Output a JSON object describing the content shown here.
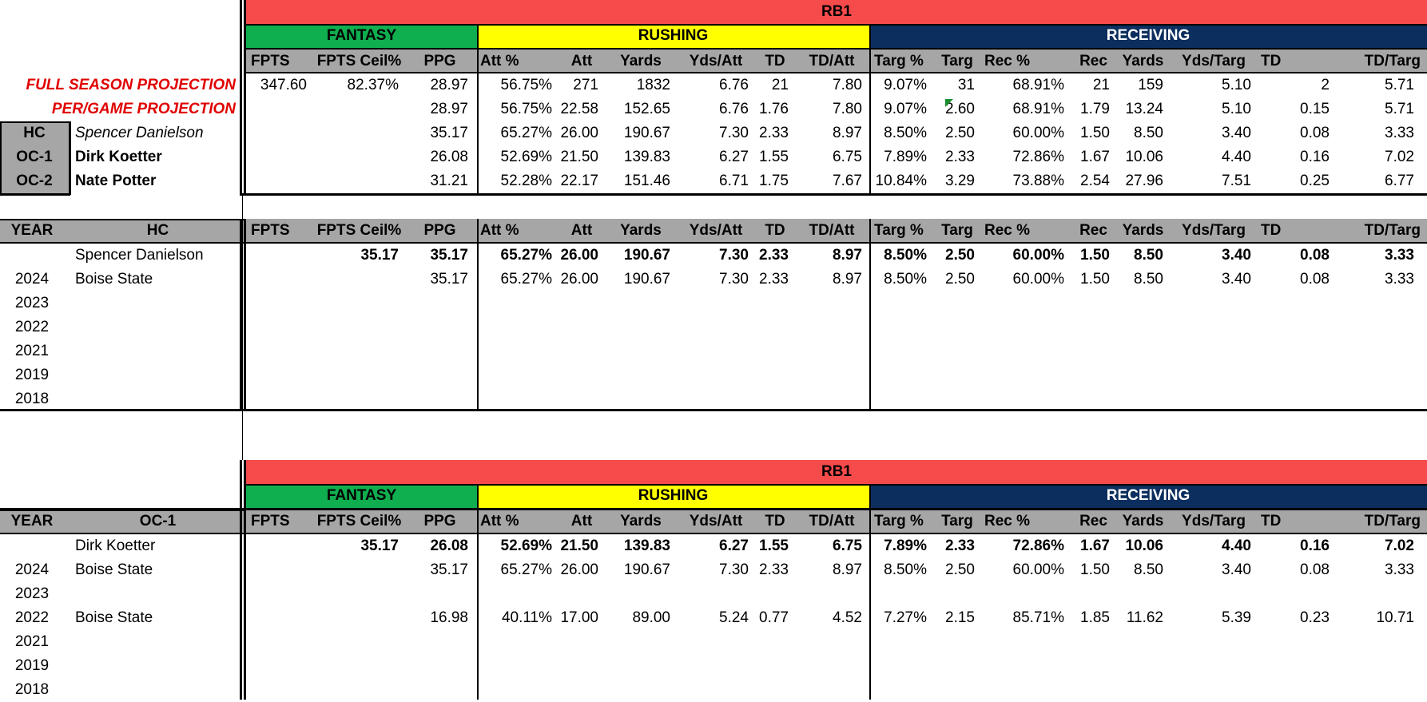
{
  "section_labels": {
    "position": "RB1",
    "fantasy": "FANTASY",
    "rushing": "RUSHING",
    "receiving": "RECEIVING"
  },
  "columns": [
    "FPTS",
    "FPTS Ceil%",
    "PPG",
    "Att %",
    "Att",
    "Yards",
    "Yds/Att",
    "TD",
    "TD/Att",
    "Targ %",
    "Targ",
    "Rec %",
    "Rec",
    "Yards",
    "Yds/Targ",
    "TD",
    "TD/Targ"
  ],
  "top": {
    "full_season_label": "FULL SEASON PROJECTION",
    "per_game_label": "PER/GAME PROJECTION",
    "full_season": [
      "347.60",
      "82.37%",
      "28.97",
      "56.75%",
      "271",
      "1832",
      "6.76",
      "21",
      "7.80",
      "9.07%",
      "31",
      "68.91%",
      "21",
      "159",
      "5.10",
      "2",
      "5.71"
    ],
    "per_game": [
      "",
      "",
      "28.97",
      "56.75%",
      "22.58",
      "152.65",
      "6.76",
      "1.76",
      "7.80",
      "9.07%",
      "2.60",
      "68.91%",
      "1.79",
      "13.24",
      "5.10",
      "0.15",
      "5.71"
    ],
    "coaches": [
      {
        "role": "HC",
        "name": "Spencer Danielson",
        "values": [
          "",
          "",
          "35.17",
          "65.27%",
          "26.00",
          "190.67",
          "7.30",
          "2.33",
          "8.97",
          "8.50%",
          "2.50",
          "60.00%",
          "1.50",
          "8.50",
          "3.40",
          "0.08",
          "3.33"
        ]
      },
      {
        "role": "OC-1",
        "name": "Dirk Koetter",
        "values": [
          "",
          "",
          "26.08",
          "52.69%",
          "21.50",
          "139.83",
          "6.27",
          "1.55",
          "6.75",
          "7.89%",
          "2.33",
          "72.86%",
          "1.67",
          "10.06",
          "4.40",
          "0.16",
          "7.02"
        ]
      },
      {
        "role": "OC-2",
        "name": "Nate Potter",
        "values": [
          "",
          "",
          "31.21",
          "52.28%",
          "22.17",
          "151.46",
          "6.71",
          "1.75",
          "7.67",
          "10.84%",
          "3.29",
          "73.88%",
          "2.54",
          "27.96",
          "7.51",
          "0.25",
          "6.77"
        ]
      }
    ]
  },
  "hc_table": {
    "year_header": "YEAR",
    "role_header": "HC",
    "summary": {
      "name": "Spencer Danielson",
      "values": [
        "",
        "35.17",
        "35.17",
        "65.27%",
        "26.00",
        "190.67",
        "7.30",
        "2.33",
        "8.97",
        "8.50%",
        "2.50",
        "60.00%",
        "1.50",
        "8.50",
        "3.40",
        "0.08",
        "3.33"
      ]
    },
    "rows": [
      {
        "year": "2024",
        "team": "Boise State",
        "values": [
          "",
          "",
          "35.17",
          "65.27%",
          "26.00",
          "190.67",
          "7.30",
          "2.33",
          "8.97",
          "8.50%",
          "2.50",
          "60.00%",
          "1.50",
          "8.50",
          "3.40",
          "0.08",
          "3.33"
        ]
      },
      {
        "year": "2023",
        "team": "",
        "values": []
      },
      {
        "year": "2022",
        "team": "",
        "values": []
      },
      {
        "year": "2021",
        "team": "",
        "values": []
      },
      {
        "year": "2019",
        "team": "",
        "values": []
      },
      {
        "year": "2018",
        "team": "",
        "values": []
      }
    ]
  },
  "oc_table": {
    "year_header": "YEAR",
    "role_header": "OC-1",
    "summary": {
      "name": "Dirk Koetter",
      "values": [
        "",
        "35.17",
        "26.08",
        "52.69%",
        "21.50",
        "139.83",
        "6.27",
        "1.55",
        "6.75",
        "7.89%",
        "2.33",
        "72.86%",
        "1.67",
        "10.06",
        "4.40",
        "0.16",
        "7.02"
      ]
    },
    "rows": [
      {
        "year": "2024",
        "team": "Boise State",
        "values": [
          "",
          "",
          "35.17",
          "65.27%",
          "26.00",
          "190.67",
          "7.30",
          "2.33",
          "8.97",
          "8.50%",
          "2.50",
          "60.00%",
          "1.50",
          "8.50",
          "3.40",
          "0.08",
          "3.33"
        ]
      },
      {
        "year": "2023",
        "team": "",
        "values": []
      },
      {
        "year": "2022",
        "team": "Boise State",
        "values": [
          "",
          "",
          "16.98",
          "40.11%",
          "17.00",
          "89.00",
          "5.24",
          "0.77",
          "4.52",
          "7.27%",
          "2.15",
          "85.71%",
          "1.85",
          "11.62",
          "5.39",
          "0.23",
          "10.71"
        ]
      },
      {
        "year": "2021",
        "team": "",
        "values": []
      },
      {
        "year": "2019",
        "team": "",
        "values": []
      },
      {
        "year": "2018",
        "team": "",
        "values": []
      }
    ]
  },
  "colors": {
    "position_band": "#f54b4b",
    "fantasy_band": "#0fae4f",
    "rushing_band": "#ffff00",
    "receiving_band": "#0b2e5e",
    "header_gray": "#a6a6a6",
    "projection_label": "#e00000"
  }
}
